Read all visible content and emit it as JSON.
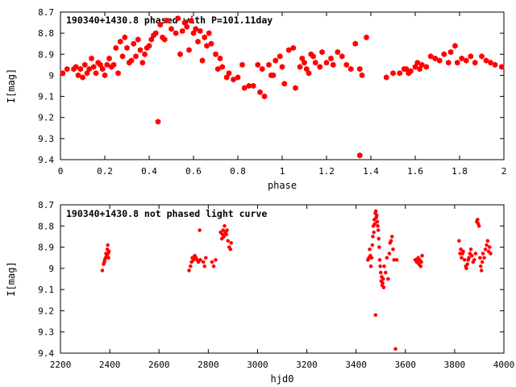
{
  "chart_data": [
    {
      "type": "scatter",
      "title": "190340+1430.8 phased with P=101.11day",
      "xlabel": "phase",
      "ylabel": "I[mag]",
      "xlim": [
        0,
        2
      ],
      "ylim": [
        8.7,
        9.4
      ],
      "y_inverted": true,
      "grid": false,
      "marker_color": "#ff0000",
      "marker": "filled-hexagon",
      "xticks": [
        "0",
        "0.2",
        "0.4",
        "0.6",
        "0.8",
        "1",
        "1.2",
        "1.4",
        "1.6",
        "1.8",
        "2"
      ],
      "yticks": [
        "8.7",
        "8.8",
        "8.9",
        "9",
        "9.1",
        "9.2",
        "9.3",
        "9.4"
      ],
      "points": [
        [
          0.01,
          8.99
        ],
        [
          0.03,
          8.97
        ],
        [
          0.06,
          8.97
        ],
        [
          0.07,
          8.96
        ],
        [
          0.08,
          9.0
        ],
        [
          0.09,
          8.97
        ],
        [
          0.1,
          9.01
        ],
        [
          0.11,
          8.95
        ],
        [
          0.12,
          8.99
        ],
        [
          0.13,
          8.97
        ],
        [
          0.14,
          8.92
        ],
        [
          0.15,
          8.96
        ],
        [
          0.16,
          8.99
        ],
        [
          0.17,
          8.94
        ],
        [
          0.18,
          8.95
        ],
        [
          0.19,
          8.97
        ],
        [
          0.2,
          9.0
        ],
        [
          0.21,
          8.95
        ],
        [
          0.22,
          8.92
        ],
        [
          0.23,
          8.96
        ],
        [
          0.24,
          8.95
        ],
        [
          0.25,
          8.87
        ],
        [
          0.26,
          8.99
        ],
        [
          0.27,
          8.84
        ],
        [
          0.28,
          8.91
        ],
        [
          0.29,
          8.82
        ],
        [
          0.3,
          8.87
        ],
        [
          0.31,
          8.94
        ],
        [
          0.32,
          8.93
        ],
        [
          0.33,
          8.85
        ],
        [
          0.34,
          8.91
        ],
        [
          0.35,
          8.83
        ],
        [
          0.36,
          8.88
        ],
        [
          0.37,
          8.94
        ],
        [
          0.38,
          8.9
        ],
        [
          0.39,
          8.87
        ],
        [
          0.4,
          8.86
        ],
        [
          0.41,
          8.83
        ],
        [
          0.42,
          8.81
        ],
        [
          0.43,
          8.8
        ],
        [
          0.44,
          9.22
        ],
        [
          0.45,
          8.76
        ],
        [
          0.46,
          8.82
        ],
        [
          0.47,
          8.83
        ],
        [
          0.48,
          8.74
        ],
        [
          0.5,
          8.78
        ],
        [
          0.52,
          8.8
        ],
        [
          0.53,
          8.73
        ],
        [
          0.54,
          8.9
        ],
        [
          0.55,
          8.79
        ],
        [
          0.56,
          8.75
        ],
        [
          0.57,
          8.77
        ],
        [
          0.58,
          8.88
        ],
        [
          0.59,
          8.74
        ],
        [
          0.6,
          8.8
        ],
        [
          0.61,
          8.78
        ],
        [
          0.62,
          8.84
        ],
        [
          0.63,
          8.79
        ],
        [
          0.64,
          8.93
        ],
        [
          0.65,
          8.82
        ],
        [
          0.66,
          8.86
        ],
        [
          0.67,
          8.8
        ],
        [
          0.68,
          8.85
        ],
        [
          0.7,
          8.9
        ],
        [
          0.71,
          8.97
        ],
        [
          0.72,
          8.92
        ],
        [
          0.73,
          8.96
        ],
        [
          0.75,
          9.01
        ],
        [
          0.76,
          8.99
        ],
        [
          0.78,
          9.02
        ],
        [
          0.8,
          9.01
        ],
        [
          0.82,
          8.95
        ],
        [
          0.83,
          9.06
        ],
        [
          0.85,
          9.05
        ],
        [
          0.87,
          9.05
        ],
        [
          0.89,
          8.95
        ],
        [
          0.9,
          9.08
        ],
        [
          0.91,
          8.97
        ],
        [
          0.92,
          9.1
        ],
        [
          0.94,
          8.95
        ],
        [
          0.95,
          9.0
        ],
        [
          0.96,
          9.0
        ],
        [
          0.97,
          8.93
        ],
        [
          0.99,
          8.91
        ],
        [
          1.0,
          8.96
        ],
        [
          1.01,
          9.04
        ],
        [
          1.03,
          8.88
        ],
        [
          1.05,
          8.87
        ],
        [
          1.06,
          9.06
        ],
        [
          1.08,
          8.96
        ],
        [
          1.09,
          8.92
        ],
        [
          1.1,
          8.94
        ],
        [
          1.11,
          8.97
        ],
        [
          1.12,
          8.99
        ],
        [
          1.13,
          8.9
        ],
        [
          1.14,
          8.91
        ],
        [
          1.15,
          8.94
        ],
        [
          1.17,
          8.96
        ],
        [
          1.18,
          8.89
        ],
        [
          1.2,
          8.94
        ],
        [
          1.22,
          8.92
        ],
        [
          1.23,
          8.95
        ],
        [
          1.25,
          8.89
        ],
        [
          1.27,
          8.91
        ],
        [
          1.29,
          8.95
        ],
        [
          1.31,
          8.97
        ],
        [
          1.33,
          8.85
        ],
        [
          1.35,
          8.97
        ],
        [
          1.35,
          9.38
        ],
        [
          1.36,
          9.0
        ],
        [
          1.38,
          8.82
        ],
        [
          1.47,
          9.01
        ],
        [
          1.5,
          8.99
        ],
        [
          1.53,
          8.99
        ],
        [
          1.55,
          8.97
        ],
        [
          1.56,
          8.97
        ],
        [
          1.57,
          8.99
        ],
        [
          1.58,
          8.98
        ],
        [
          1.6,
          8.96
        ],
        [
          1.61,
          8.94
        ],
        [
          1.62,
          8.97
        ],
        [
          1.63,
          8.95
        ],
        [
          1.65,
          8.96
        ],
        [
          1.67,
          8.91
        ],
        [
          1.69,
          8.92
        ],
        [
          1.71,
          8.93
        ],
        [
          1.73,
          8.9
        ],
        [
          1.75,
          8.94
        ],
        [
          1.76,
          8.89
        ],
        [
          1.78,
          8.86
        ],
        [
          1.79,
          8.94
        ],
        [
          1.81,
          8.92
        ],
        [
          1.83,
          8.93
        ],
        [
          1.85,
          8.91
        ],
        [
          1.87,
          8.94
        ],
        [
          1.9,
          8.91
        ],
        [
          1.92,
          8.93
        ],
        [
          1.94,
          8.94
        ],
        [
          1.96,
          8.95
        ],
        [
          1.99,
          8.96
        ]
      ]
    },
    {
      "type": "scatter",
      "title": "190340+1430.8 not phased light curve",
      "xlabel": "hjd0",
      "ylabel": "I[mag]",
      "xlim": [
        2200,
        4000
      ],
      "ylim": [
        8.7,
        9.4
      ],
      "y_inverted": true,
      "grid": false,
      "marker_color": "#ff0000",
      "marker": "filled-circle",
      "xticks": [
        "2200",
        "2400",
        "2600",
        "2800",
        "3000",
        "3200",
        "3400",
        "3600",
        "3800",
        "4000"
      ],
      "yticks": [
        "8.7",
        "8.8",
        "8.9",
        "9",
        "9.1",
        "9.2",
        "9.3",
        "9.4"
      ],
      "points": [
        [
          2370,
          9.01
        ],
        [
          2375,
          8.98
        ],
        [
          2378,
          8.97
        ],
        [
          2380,
          8.96
        ],
        [
          2383,
          8.95
        ],
        [
          2385,
          8.93
        ],
        [
          2388,
          8.94
        ],
        [
          2390,
          8.91
        ],
        [
          2392,
          8.89
        ],
        [
          2393,
          8.93
        ],
        [
          2395,
          8.95
        ],
        [
          2397,
          8.92
        ],
        [
          2722,
          9.01
        ],
        [
          2728,
          8.99
        ],
        [
          2732,
          8.97
        ],
        [
          2735,
          8.95
        ],
        [
          2740,
          8.96
        ],
        [
          2745,
          8.94
        ],
        [
          2750,
          8.95
        ],
        [
          2755,
          8.96
        ],
        [
          2760,
          8.97
        ],
        [
          2765,
          8.82
        ],
        [
          2768,
          8.96
        ],
        [
          2780,
          8.97
        ],
        [
          2785,
          8.99
        ],
        [
          2790,
          8.95
        ],
        [
          2815,
          8.97
        ],
        [
          2822,
          8.99
        ],
        [
          2830,
          8.96
        ],
        [
          2850,
          8.83
        ],
        [
          2855,
          8.86
        ],
        [
          2858,
          8.84
        ],
        [
          2860,
          8.82
        ],
        [
          2863,
          8.85
        ],
        [
          2866,
          8.8
        ],
        [
          2870,
          8.83
        ],
        [
          2873,
          8.84
        ],
        [
          2876,
          8.82
        ],
        [
          2880,
          8.87
        ],
        [
          2885,
          8.9
        ],
        [
          2890,
          8.91
        ],
        [
          2893,
          8.88
        ],
        [
          3448,
          8.96
        ],
        [
          3452,
          8.95
        ],
        [
          3455,
          8.91
        ],
        [
          3458,
          8.94
        ],
        [
          3460,
          8.99
        ],
        [
          3463,
          8.95
        ],
        [
          3466,
          8.89
        ],
        [
          3468,
          8.85
        ],
        [
          3470,
          8.8
        ],
        [
          3472,
          8.83
        ],
        [
          3474,
          8.77
        ],
        [
          3476,
          8.79
        ],
        [
          3478,
          8.74
        ],
        [
          3479,
          9.22
        ],
        [
          3480,
          8.73
        ],
        [
          3482,
          8.76
        ],
        [
          3484,
          8.75
        ],
        [
          3486,
          8.78
        ],
        [
          3488,
          8.8
        ],
        [
          3490,
          8.82
        ],
        [
          3492,
          8.86
        ],
        [
          3494,
          8.9
        ],
        [
          3496,
          8.96
        ],
        [
          3498,
          8.99
        ],
        [
          3500,
          9.02
        ],
        [
          3502,
          9.06
        ],
        [
          3504,
          9.04
        ],
        [
          3506,
          9.08
        ],
        [
          3508,
          9.07
        ],
        [
          3510,
          9.05
        ],
        [
          3512,
          9.09
        ],
        [
          3514,
          8.99
        ],
        [
          3520,
          9.02
        ],
        [
          3525,
          8.95
        ],
        [
          3530,
          9.05
        ],
        [
          3535,
          8.93
        ],
        [
          3538,
          8.88
        ],
        [
          3542,
          8.87
        ],
        [
          3546,
          8.85
        ],
        [
          3550,
          8.91
        ],
        [
          3554,
          8.96
        ],
        [
          3560,
          9.38
        ],
        [
          3565,
          8.96
        ],
        [
          3640,
          8.96
        ],
        [
          3643,
          8.96
        ],
        [
          3646,
          8.97
        ],
        [
          3649,
          8.97
        ],
        [
          3652,
          8.95
        ],
        [
          3655,
          8.98
        ],
        [
          3658,
          8.96
        ],
        [
          3662,
          8.99
        ],
        [
          3665,
          8.97
        ],
        [
          3668,
          8.94
        ],
        [
          3818,
          8.87
        ],
        [
          3822,
          8.93
        ],
        [
          3825,
          8.91
        ],
        [
          3828,
          8.95
        ],
        [
          3832,
          8.93
        ],
        [
          3835,
          8.92
        ],
        [
          3840,
          8.96
        ],
        [
          3845,
          8.99
        ],
        [
          3848,
          9.0
        ],
        [
          3852,
          8.98
        ],
        [
          3855,
          8.96
        ],
        [
          3858,
          8.95
        ],
        [
          3862,
          8.93
        ],
        [
          3866,
          8.91
        ],
        [
          3870,
          8.94
        ],
        [
          3875,
          8.97
        ],
        [
          3880,
          8.96
        ],
        [
          3885,
          8.93
        ],
        [
          3890,
          8.78
        ],
        [
          3893,
          8.77
        ],
        [
          3896,
          8.79
        ],
        [
          3899,
          8.8
        ],
        [
          3903,
          8.95
        ],
        [
          3906,
          8.99
        ],
        [
          3909,
          9.01
        ],
        [
          3912,
          8.97
        ],
        [
          3915,
          8.93
        ],
        [
          3920,
          8.95
        ],
        [
          3925,
          8.91
        ],
        [
          3930,
          8.89
        ],
        [
          3934,
          8.87
        ],
        [
          3938,
          8.92
        ],
        [
          3942,
          8.9
        ],
        [
          3946,
          8.93
        ]
      ]
    }
  ]
}
